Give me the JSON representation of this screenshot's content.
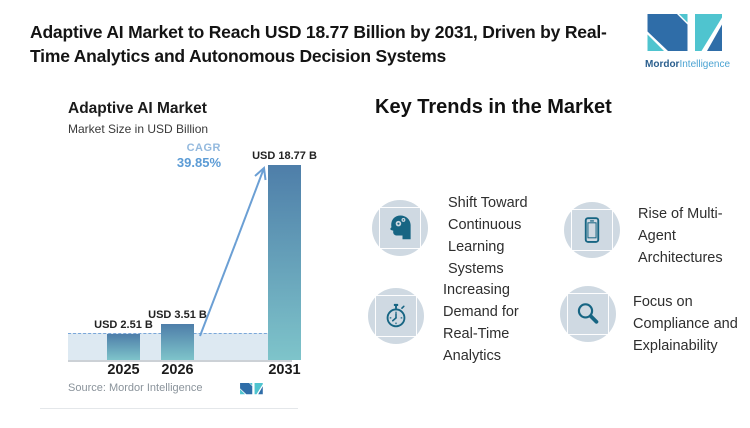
{
  "page": {
    "title": "Adaptive AI Market to Reach USD 18.77 Billion by 2031, Driven by Real-Time Analytics and Autonomous Decision Systems"
  },
  "logo": {
    "brand_bold": "Mordor",
    "brand_light": "Intelligence",
    "dark_blue": "#2f6da8",
    "teal": "#4fc4cf"
  },
  "chart_data": {
    "type": "bar",
    "title": "Adaptive AI Market",
    "subtitle": "Market Size in USD Billion",
    "categories": [
      "2025",
      "2026",
      "2031"
    ],
    "values": [
      2.51,
      3.51,
      18.77
    ],
    "value_labels": [
      "USD 2.51 B",
      "USD 3.51 B",
      "USD 18.77 B"
    ],
    "cagr_label": "CAGR",
    "cagr_value": "39.85%",
    "baseline_value": 2.51,
    "ylim": [
      0,
      20
    ],
    "grid": false,
    "legend": "none",
    "bar_gradient_top": "#4e7ea9",
    "bar_gradient_bottom": "#7ec4ca",
    "dashed_line_color": "#7aa7d9",
    "band_color": "#dde9f2",
    "source": "Source: Mordor Intelligence"
  },
  "trends": {
    "heading": "Key Trends in the Market",
    "items": [
      {
        "icon": "head-gears-icon",
        "label": "Shift Toward Continuous Learning Systems"
      },
      {
        "icon": "tablet-icon",
        "label": "Rise of Multi-Agent Architectures"
      },
      {
        "icon": "stopwatch-icon",
        "label": "Increasing Demand for Real-Time Analytics"
      },
      {
        "icon": "magnifier-icon",
        "label": "Focus on Compliance and Explainability"
      }
    ]
  },
  "colors": {
    "icon_ink": "#176583",
    "icon_circle": "#cfd9e2",
    "accent_blue": "#5b9bd5"
  }
}
